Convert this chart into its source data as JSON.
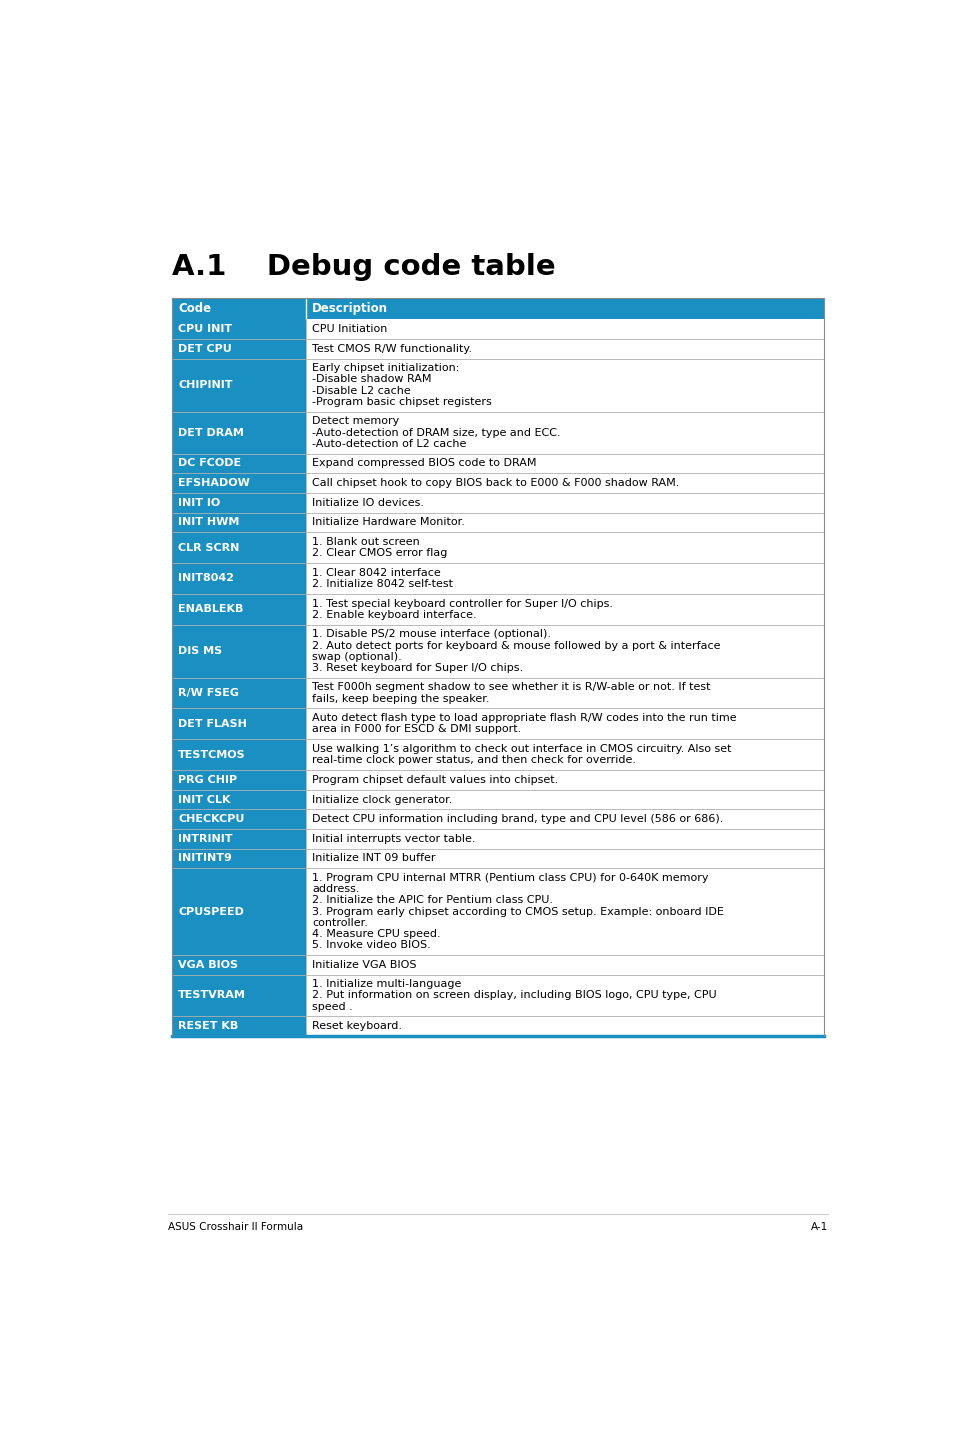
{
  "title": "A.1    Debug code table",
  "header": [
    "Code",
    "Description"
  ],
  "header_bg": "#1a8fc1",
  "footer_left": "ASUS Crosshair II Formula",
  "footer_right": "A-1",
  "rows": [
    {
      "code": "CPU INIT",
      "desc": "CPU Initiation"
    },
    {
      "code": "DET CPU",
      "desc": "Test CMOS R/W functionality."
    },
    {
      "code": "CHIPINIT",
      "desc": "Early chipset initialization:\n-Disable shadow RAM\n-Disable L2 cache\n-Program basic chipset registers"
    },
    {
      "code": "DET DRAM",
      "desc": "Detect memory\n-Auto-detection of DRAM size, type and ECC.\n-Auto-detection of L2 cache"
    },
    {
      "code": "DC FCODE",
      "desc": "Expand compressed BIOS code to DRAM"
    },
    {
      "code": "EFSHADOW",
      "desc": "Call chipset hook to copy BIOS back to E000 & F000 shadow RAM."
    },
    {
      "code": "INIT IO",
      "desc": "Initialize IO devices."
    },
    {
      "code": "INIT HWM",
      "desc": "Initialize Hardware Monitor."
    },
    {
      "code": "CLR SCRN",
      "desc": "1. Blank out screen\n2. Clear CMOS error flag"
    },
    {
      "code": "INIT8042",
      "desc": "1. Clear 8042 interface\n2. Initialize 8042 self-test"
    },
    {
      "code": "ENABLEKB",
      "desc": "1. Test special keyboard controller for Super I/O chips.\n2. Enable keyboard interface."
    },
    {
      "code": "DIS MS",
      "desc": "1. Disable PS/2 mouse interface (optional).\n2. Auto detect ports for keyboard & mouse followed by a port & interface\nswap (optional).\n3. Reset keyboard for Super I/O chips."
    },
    {
      "code": "R/W FSEG",
      "desc": "Test F000h segment shadow to see whether it is R/W-able or not. If test\nfails, keep beeping the speaker."
    },
    {
      "code": "DET FLASH",
      "desc": "Auto detect flash type to load appropriate flash R/W codes into the run time\narea in F000 for ESCD & DMI support."
    },
    {
      "code": "TESTCMOS",
      "desc": "Use walking 1’s algorithm to check out interface in CMOS circuitry. Also set\nreal-time clock power status, and then check for override."
    },
    {
      "code": "PRG CHIP",
      "desc": "Program chipset default values into chipset."
    },
    {
      "code": "INIT CLK",
      "desc": "Initialize clock generator."
    },
    {
      "code": "CHECKCPU",
      "desc": "Detect CPU information including brand, type and CPU level (586 or 686)."
    },
    {
      "code": "INTRINIT",
      "desc": "Initial interrupts vector table."
    },
    {
      "code": "INITINT9",
      "desc": "Initialize INT 09 buffer"
    },
    {
      "code": "CPUSPEED",
      "desc": "1. Program CPU internal MTRR (Pentium class CPU) for 0-640K memory\naddress.\n2. Initialize the APIC for Pentium class CPU.\n3. Program early chipset according to CMOS setup. Example: onboard IDE\ncontroller.\n4. Measure CPU speed.\n5. Invoke video BIOS."
    },
    {
      "code": "VGA BIOS",
      "desc": "Initialize VGA BIOS"
    },
    {
      "code": "TESTVRAM",
      "desc": "1. Initialize multi-language\n2. Put information on screen display, including BIOS logo, CPU type, CPU\nspeed ."
    },
    {
      "code": "RESET KB",
      "desc": "Reset keyboard."
    }
  ]
}
